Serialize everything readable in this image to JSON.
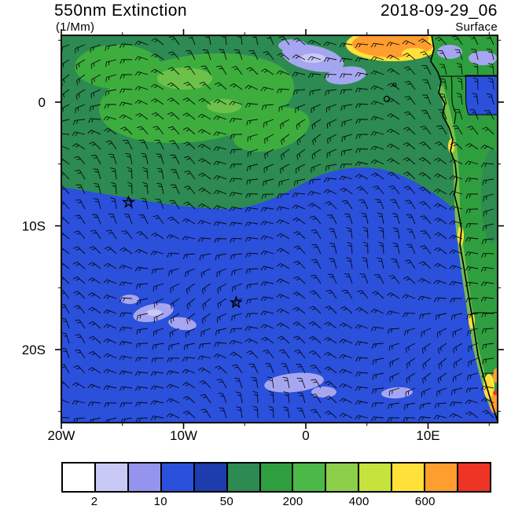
{
  "header": {
    "title": "550nm Extinction",
    "units": "(1/Mm)",
    "datetime": "2018-09-29_06",
    "level": "Surface"
  },
  "map": {
    "x_ticks": [
      {
        "label": "20W",
        "lon": -20
      },
      {
        "label": "10W",
        "lon": -10
      },
      {
        "label": "0",
        "lon": 0
      },
      {
        "label": "10E",
        "lon": 10
      }
    ],
    "y_ticks": [
      {
        "label": "0",
        "lat": 0
      },
      {
        "label": "10S",
        "lat": -10
      },
      {
        "label": "20S",
        "lat": -20
      }
    ],
    "minor_tick_step_deg": 5
  },
  "colorbar": {
    "n_boxes": 13,
    "colors": [
      "#ffffff",
      "#c9c9f6",
      "#9494ee",
      "#2a50dc",
      "#1d3cae",
      "#2c8a52",
      "#2f9e3e",
      "#4cb847",
      "#8ccf4a",
      "#c6e23c",
      "#ffe13a",
      "#ff9d2e",
      "#ee3424"
    ],
    "labels": [
      {
        "text": "2",
        "edge": 1
      },
      {
        "text": "10",
        "edge": 3
      },
      {
        "text": "50",
        "edge": 5
      },
      {
        "text": "200",
        "edge": 7
      },
      {
        "text": "400",
        "edge": 9
      },
      {
        "text": "600",
        "edge": 11
      }
    ]
  },
  "chart_data": {
    "type": "heatmap",
    "title": "550nm Extinction",
    "units": "1/Mm",
    "timestamp": "2018-09-29_06",
    "level": "Surface",
    "region": "South Atlantic Ocean and West African coast",
    "lon_range_deg": [
      -20,
      15.7
    ],
    "lat_range_deg": [
      -25.6,
      5.4
    ],
    "x_tick_labels": [
      "20W",
      "10W",
      "0",
      "10E"
    ],
    "y_tick_labels": [
      "0",
      "10S",
      "20S"
    ],
    "color_levels": [
      2,
      5,
      10,
      20,
      50,
      100,
      200,
      300,
      400,
      500,
      600,
      700
    ],
    "labeled_levels": [
      2,
      10,
      50,
      200,
      400,
      600
    ],
    "palette": [
      "#ffffff",
      "#c9c9f6",
      "#9494ee",
      "#2a50dc",
      "#1d3cae",
      "#2c8a52",
      "#2f9e3e",
      "#4cb847",
      "#8ccf4a",
      "#c6e23c",
      "#ffe13a",
      "#ff9d2e",
      "#ee3424"
    ],
    "overlays": [
      "surface wind barbs on regular grid",
      "coastline and country borders"
    ],
    "markers": [
      {
        "type": "star",
        "lon_deg": -14.5,
        "lat_deg": -8.1
      },
      {
        "type": "star",
        "lon_deg": -5.7,
        "lat_deg": -16.2
      }
    ],
    "field_regions": [
      {
        "area": "equatorial band north of ~7S, west of ~5E",
        "extinction_1_per_Mm": "50-200"
      },
      {
        "area": "central and southern South Atlantic",
        "extinction_1_per_Mm": "10-50"
      },
      {
        "area": "scattered pale subtropical patches",
        "extinction_1_per_Mm": "5-10"
      },
      {
        "area": "Gulf of Guinea near 4-9E at top of domain",
        "extinction_1_per_Mm": "400-700"
      },
      {
        "area": "African coastal land strip",
        "extinction_1_per_Mm": "100-700"
      }
    ]
  }
}
